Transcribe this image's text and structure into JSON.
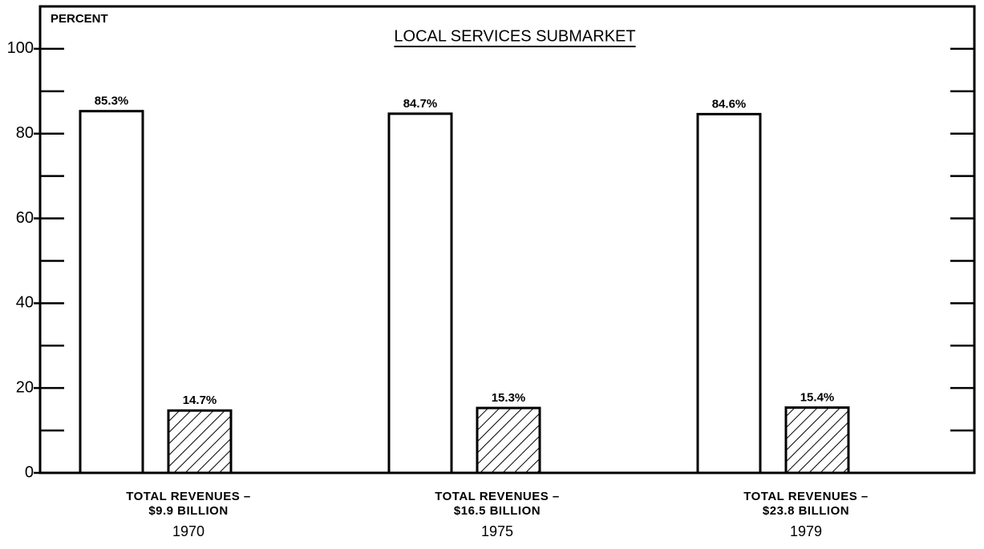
{
  "chart_data": {
    "type": "bar",
    "title": "LOCAL SERVICES SUBMARKET",
    "ylabel": "PERCENT",
    "categories": [
      "1970",
      "1975",
      "1979"
    ],
    "category_notes": [
      [
        "TOTAL REVENUES –",
        "$9.9 BILLION"
      ],
      [
        "TOTAL REVENUES –",
        "$16.5 BILLION"
      ],
      [
        "TOTAL REVENUES –",
        "$23.8 BILLION"
      ]
    ],
    "series": [
      {
        "color": "#ffffff",
        "hatch": false,
        "values": [
          85.3,
          84.7,
          84.6
        ],
        "value_labels": [
          "85.3%",
          "84.7%",
          "84.6%"
        ]
      },
      {
        "color": "#ffffff",
        "hatch": true,
        "values": [
          14.7,
          15.3,
          15.4
        ],
        "value_labels": [
          "14.7%",
          "15.3%",
          "15.4%"
        ]
      }
    ],
    "ylim": [
      0,
      110
    ],
    "yticks": [
      0,
      20,
      40,
      60,
      80,
      100
    ],
    "minor_yticks": [
      10,
      30,
      50,
      70,
      90
    ]
  }
}
